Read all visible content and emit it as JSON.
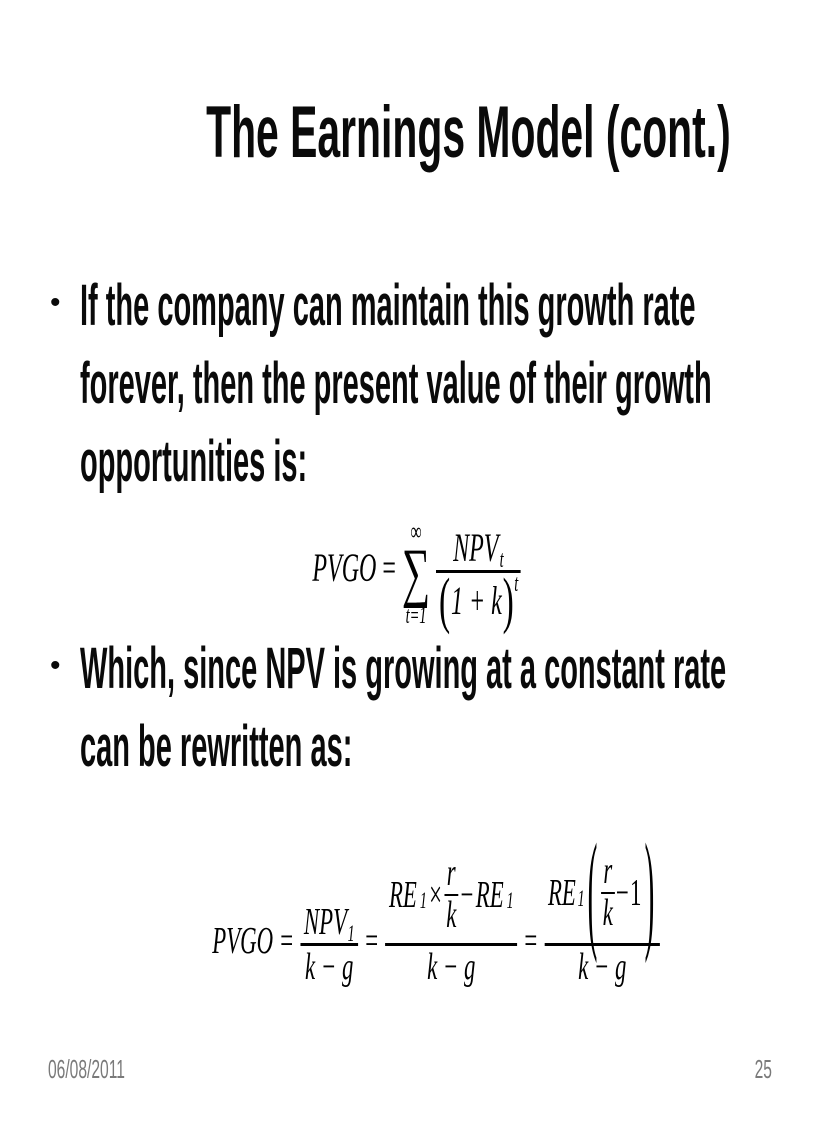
{
  "slide": {
    "title": "The Earnings Model (cont.)",
    "bullet_marker": "•",
    "bullet1": {
      "line1": "If the company can maintain this growth rate",
      "line2": "forever, then the present value of their growth",
      "line3": "opportunities is:"
    },
    "bullet2": {
      "line1": "Which, since NPV is growing at a constant rate",
      "line2": "can be rewritten as:"
    },
    "formula1": {
      "lhs": "PVGO",
      "equals": "=",
      "sum_upper": "∞",
      "sum_sigma": "∑",
      "sum_lower": "t=1",
      "num_base": "NPV",
      "num_sub": "t",
      "den_open": "(",
      "den_body": "1 + k",
      "den_close": ")",
      "den_exp": "t"
    },
    "formula2": {
      "lhs": "PVGO",
      "eq1": "=",
      "f1_num_base": "NPV",
      "f1_num_sub": "1",
      "f1_den": "k − g",
      "eq2": "=",
      "f2_re1": "RE",
      "f2_re1_sub": "1",
      "f2_times": "×",
      "f2_inner_num": "r",
      "f2_inner_den": "k",
      "f2_minus": "−",
      "f2_re2": "RE",
      "f2_re2_sub": "1",
      "f2_den": "k − g",
      "eq3": "=",
      "f3_re": "RE",
      "f3_re_sub": "1",
      "f3_open": "(",
      "f3_inner_num": "r",
      "f3_inner_den": "k",
      "f3_minus": "−",
      "f3_one": "1",
      "f3_close": ")",
      "f3_den": "k − g"
    },
    "footer": {
      "date": "06/08/2011",
      "page_number": "25"
    },
    "colors": {
      "text": "#0a0a0a",
      "footer_text": "#7a7a7a"
    }
  }
}
